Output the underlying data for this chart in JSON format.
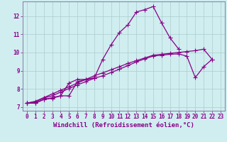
{
  "title": "",
  "xlabel": "Windchill (Refroidissement éolien,°C)",
  "bg_color": "#d0eef0",
  "line_color": "#880088",
  "grid_color": "#aacccc",
  "xlim": [
    -0.5,
    23.5
  ],
  "ylim": [
    6.8,
    12.8
  ],
  "xtick_vals": [
    0,
    1,
    2,
    3,
    4,
    5,
    6,
    7,
    8,
    9,
    10,
    11,
    12,
    13,
    14,
    15,
    16,
    17,
    18,
    19,
    20,
    21,
    22,
    23
  ],
  "xtick_labels": [
    "0",
    "1",
    "2",
    "3",
    "4",
    "5",
    "6",
    "7",
    "8",
    "9",
    "10",
    "11",
    "12",
    "13",
    "14",
    "15",
    "16",
    "17",
    "18",
    "19",
    "20",
    "21",
    "22",
    "23"
  ],
  "ytick_vals": [
    7,
    8,
    9,
    10,
    11,
    12
  ],
  "ytick_labels": [
    "7",
    "8",
    "9",
    "10",
    "11",
    "12"
  ],
  "xlabel_fontsize": 6.5,
  "tick_fontsize": 5.5,
  "marker_size": 2.5,
  "line_width": 0.9,
  "series": [
    {
      "x": [
        0,
        1,
        2,
        3,
        4,
        5,
        6,
        7,
        8,
        9,
        10,
        11,
        12,
        13,
        14,
        15,
        16,
        17,
        18
      ],
      "y": [
        7.22,
        7.22,
        7.42,
        7.48,
        7.62,
        7.62,
        8.4,
        8.52,
        8.6,
        9.62,
        10.42,
        11.1,
        11.52,
        12.22,
        12.35,
        12.52,
        11.62,
        10.8,
        10.2
      ]
    },
    {
      "x": [
        0,
        1,
        2,
        3,
        4,
        5,
        6,
        7,
        8
      ],
      "y": [
        7.22,
        7.22,
        7.42,
        7.52,
        7.62,
        8.32,
        8.52,
        8.52,
        8.6
      ]
    },
    {
      "x": [
        0,
        1,
        2,
        3,
        4,
        5,
        6,
        7,
        8,
        9,
        10,
        11,
        12,
        13,
        14,
        15,
        16,
        17,
        18,
        19,
        20,
        21,
        22
      ],
      "y": [
        7.22,
        7.28,
        7.5,
        7.62,
        7.82,
        8.02,
        8.22,
        8.4,
        8.58,
        8.72,
        8.9,
        9.08,
        9.28,
        9.48,
        9.65,
        9.8,
        9.85,
        9.9,
        9.92,
        9.8,
        8.62,
        9.22,
        9.62
      ]
    },
    {
      "x": [
        0,
        1,
        2,
        3,
        4,
        5,
        6,
        7,
        8,
        9,
        10,
        11,
        12,
        13,
        14,
        15,
        16,
        17,
        18,
        19,
        20,
        21,
        22
      ],
      "y": [
        7.22,
        7.32,
        7.52,
        7.72,
        7.92,
        8.12,
        8.32,
        8.52,
        8.72,
        8.88,
        9.05,
        9.22,
        9.4,
        9.55,
        9.7,
        9.85,
        9.9,
        9.95,
        10.0,
        10.05,
        10.1,
        10.18,
        9.62
      ]
    }
  ]
}
